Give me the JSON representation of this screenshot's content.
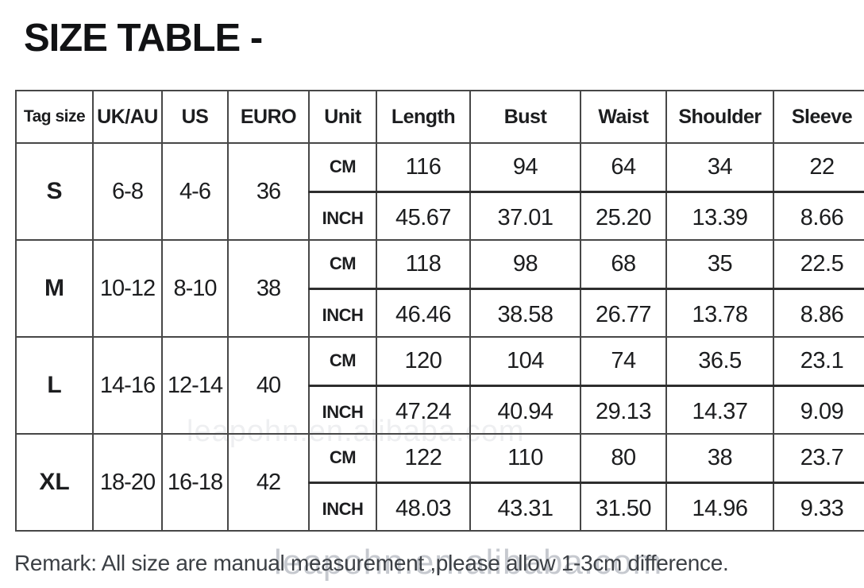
{
  "page": {
    "title": "SIZE TABLE -",
    "remark": "Remark: All size are manual measurement ,please allow 1-3cm difference.",
    "watermark": "leapohn.en.alibaba.com"
  },
  "colors": {
    "text": "#1c1d1f",
    "border": "#474747",
    "remark_text": "#3c4045",
    "watermark": "#8f95a1",
    "background": "#ffffff"
  },
  "table": {
    "headers": [
      "Tag size",
      "UK/AU",
      "US",
      "EURO",
      "Unit",
      "Length",
      "Bust",
      "Waist",
      "Shoulder",
      "Sleeve"
    ],
    "unit_labels": {
      "cm": "CM",
      "inch": "INCH"
    },
    "groups": [
      {
        "tag": "S",
        "uk_au": "6-8",
        "us": "4-6",
        "euro": "36",
        "cm": {
          "length": "116",
          "bust": "94",
          "waist": "64",
          "shoulder": "34",
          "sleeve": "22"
        },
        "inch": {
          "length": "45.67",
          "bust": "37.01",
          "waist": "25.20",
          "shoulder": "13.39",
          "sleeve": "8.66"
        }
      },
      {
        "tag": "M",
        "uk_au": "10-12",
        "us": "8-10",
        "euro": "38",
        "cm": {
          "length": "118",
          "bust": "98",
          "waist": "68",
          "shoulder": "35",
          "sleeve": "22.5"
        },
        "inch": {
          "length": "46.46",
          "bust": "38.58",
          "waist": "26.77",
          "shoulder": "13.78",
          "sleeve": "8.86"
        }
      },
      {
        "tag": "L",
        "uk_au": "14-16",
        "us": "12-14",
        "euro": "40",
        "cm": {
          "length": "120",
          "bust": "104",
          "waist": "74",
          "shoulder": "36.5",
          "sleeve": "23.1"
        },
        "inch": {
          "length": "47.24",
          "bust": "40.94",
          "waist": "29.13",
          "shoulder": "14.37",
          "sleeve": "9.09"
        }
      },
      {
        "tag": "XL",
        "uk_au": "18-20",
        "us": "16-18",
        "euro": "42",
        "cm": {
          "length": "122",
          "bust": "110",
          "waist": "80",
          "shoulder": "38",
          "sleeve": "23.7"
        },
        "inch": {
          "length": "48.03",
          "bust": "43.31",
          "waist": "31.50",
          "shoulder": "14.96",
          "sleeve": "9.33"
        }
      }
    ]
  }
}
